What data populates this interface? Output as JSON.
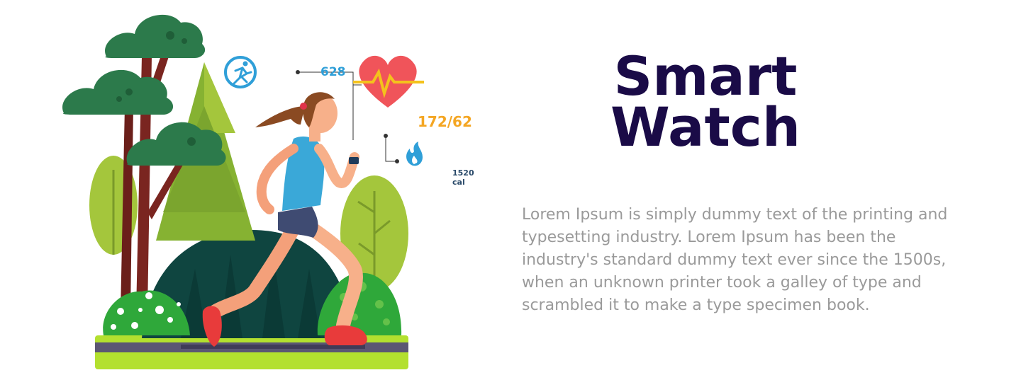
{
  "headline": {
    "line1": "Smart",
    "line2": "Watch"
  },
  "description": "Lorem Ipsum is simply dummy text of the printing and typesetting industry. Lorem Ipsum has been the industry's standard dummy text ever since the 1500s, when an unknown printer took a galley of type and scrambled it to make a type specimen book.",
  "stats": {
    "steps": "628",
    "blood_pressure": "172/62",
    "calories": "1520 cal"
  },
  "icons": {
    "steps": "running-person-icon",
    "heart": "heart-pulse-icon",
    "calories": "flame-icon"
  },
  "colors": {
    "title": "#1a0b47",
    "body_text": "#9a9a9a",
    "steps_accent": "#2f9fd8",
    "bp_accent": "#f4a623",
    "heart": "#f0545a",
    "grass": "#b3e02f"
  }
}
